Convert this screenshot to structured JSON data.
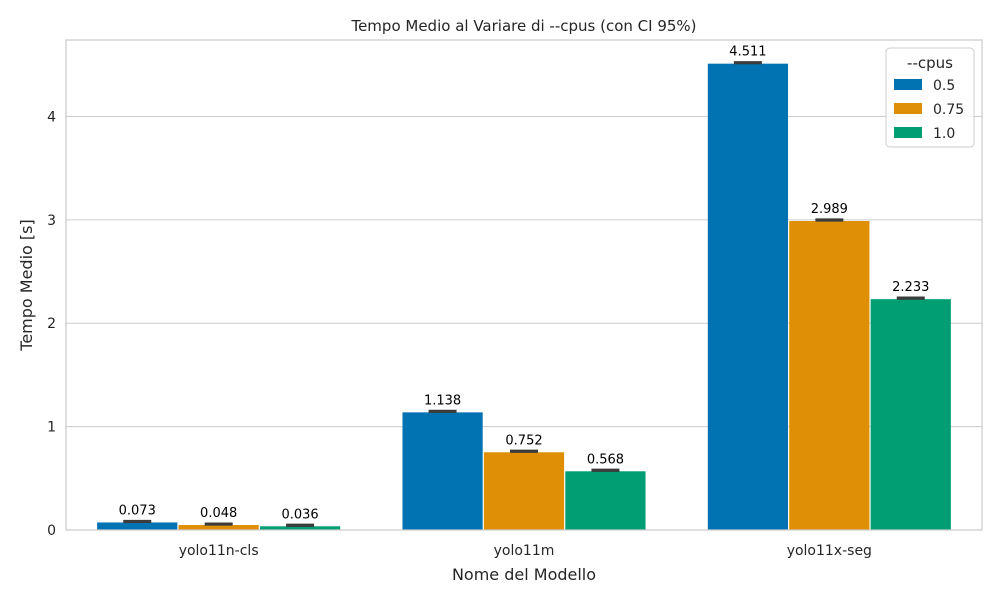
{
  "chart_data": {
    "type": "bar",
    "title": "Tempo Medio al Variare di --cpus (con CI 95%)",
    "xlabel": "Nome del Modello",
    "ylabel": "Tempo Medio [s]",
    "categories": [
      "yolo11n-cls",
      "yolo11m",
      "yolo11x-seg"
    ],
    "series": [
      {
        "name": "0.5",
        "color": "#0173b2",
        "values": [
          0.073,
          1.138,
          4.511
        ]
      },
      {
        "name": "0.75",
        "color": "#de8f05",
        "values": [
          0.048,
          0.752,
          2.989
        ]
      },
      {
        "name": "1.0",
        "color": "#029e73",
        "values": [
          0.036,
          0.568,
          2.233
        ]
      }
    ],
    "bar_labels": [
      [
        "0.073",
        "1.138",
        "4.511"
      ],
      [
        "0.048",
        "0.752",
        "2.989"
      ],
      [
        "0.036",
        "0.568",
        "2.233"
      ]
    ],
    "ylim": [
      0,
      4.74
    ],
    "yticks": [
      0,
      1,
      2,
      3,
      4
    ],
    "grid": "horizontal",
    "legend": {
      "title": "--cpus",
      "position": "top-right"
    }
  }
}
